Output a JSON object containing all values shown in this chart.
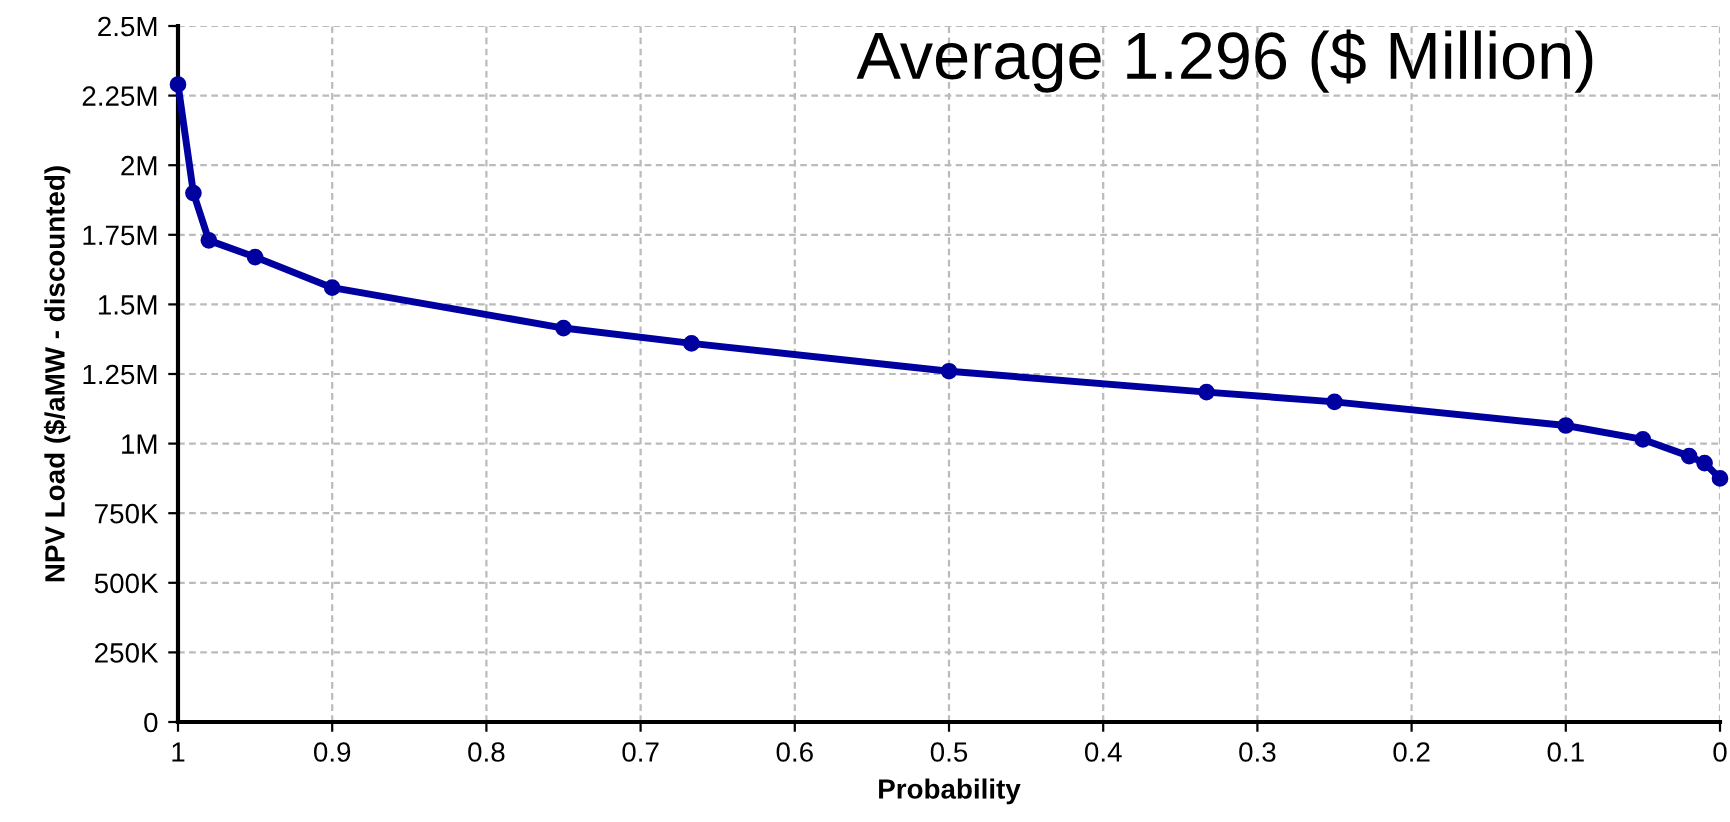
{
  "chart_data": {
    "type": "line",
    "xlabel": "Probability",
    "ylabel": "NPV Load ($/aMW - discounted)",
    "annotations": [
      "Average 1.296 ($ Million)"
    ],
    "x": [
      1,
      0.99,
      0.98,
      0.95,
      0.9,
      0.75,
      0.667,
      0.5,
      0.333,
      0.25,
      0.1,
      0.05,
      0.02,
      0.01,
      0
    ],
    "series": [
      {
        "color": "#0000a0",
        "values": [
          2290000,
          1900000,
          1730000,
          1670000,
          1560000,
          1415000,
          1360000,
          1260000,
          1185000,
          1150000,
          1065000,
          1015000,
          955000,
          930000,
          875000
        ]
      }
    ],
    "xlim": [
      1,
      0
    ],
    "xticks": [
      1,
      0.9,
      0.8,
      0.7,
      0.6,
      0.5,
      0.4,
      0.3,
      0.2,
      0.1,
      0
    ],
    "ylim": [
      0,
      2500000
    ],
    "yticks": [
      0,
      {
        "value": 250000,
        "label": "250K"
      },
      {
        "value": 500000,
        "label": "500K"
      },
      {
        "value": 750000,
        "label": "750K"
      },
      {
        "value": 1000000,
        "label": "1M"
      },
      {
        "value": 1250000,
        "label": "1.25M"
      },
      {
        "value": 1500000,
        "label": "1.5M"
      },
      {
        "value": 1750000,
        "label": "1.75M"
      },
      {
        "value": 2000000,
        "label": "2M"
      },
      {
        "value": 2250000,
        "label": "2.25M"
      },
      {
        "value": 2500000,
        "label": "2.5M"
      }
    ],
    "grid": true,
    "legend": false,
    "marker": "circle",
    "line_style": "solid"
  }
}
